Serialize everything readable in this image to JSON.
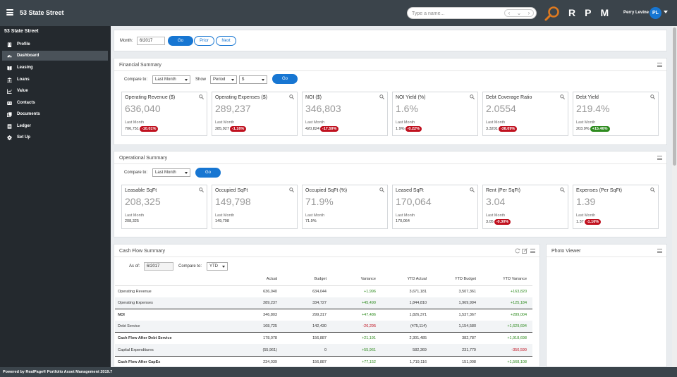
{
  "header": {
    "property_name": "53 State Street",
    "search_placeholder": "Type a name...",
    "brand": "RPM",
    "user_name": "Perry Levine",
    "user_initials": "PL"
  },
  "sidebar": {
    "title": "53 State Street",
    "items": [
      {
        "label": "Profile",
        "icon": "building-icon",
        "active": false
      },
      {
        "label": "Dashboard",
        "icon": "dashboard-icon",
        "active": true
      },
      {
        "label": "Leasing",
        "icon": "book-icon",
        "active": false
      },
      {
        "label": "Loans",
        "icon": "bank-icon",
        "active": false
      },
      {
        "label": "Value",
        "icon": "line-chart-icon",
        "active": false
      },
      {
        "label": "Contacts",
        "icon": "contact-card-icon",
        "active": false
      },
      {
        "label": "Documents",
        "icon": "documents-icon",
        "active": false
      },
      {
        "label": "Ledger",
        "icon": "ledger-icon",
        "active": false
      },
      {
        "label": "Set Up",
        "icon": "gear-icon",
        "active": false
      }
    ]
  },
  "month_bar": {
    "label": "Month:",
    "value": "6/2017",
    "go": "Go",
    "prior": "Prior",
    "next": "Next"
  },
  "financial": {
    "title": "Financial Summary",
    "compare_label": "Compare to:",
    "compare_value": "Last Month",
    "show_label": "Show",
    "show_value": "Period",
    "currency_value": "$",
    "go": "Go",
    "cards": [
      {
        "title": "Operating Revenue ($)",
        "value": "636,040",
        "lm_label": "Last Month",
        "prev": "706,751",
        "change": "-10.01%",
        "dir": "neg"
      },
      {
        "title": "Operating Expenses ($)",
        "value": "289,237",
        "lm_label": "Last Month",
        "prev": "285,927",
        "change": "-1.16%",
        "dir": "neg"
      },
      {
        "title": "NOI ($)",
        "value": "346,803",
        "lm_label": "Last Month",
        "prev": "420,824",
        "change": "-17.59%",
        "dir": "neg"
      },
      {
        "title": "NOI Yield (%)",
        "value": "1.6%",
        "lm_label": "Last Month",
        "prev": "1.9%",
        "change": "-0.22%",
        "dir": "neg"
      },
      {
        "title": "Debt Coverage Ratio",
        "value": "2.0554",
        "lm_label": "Last Month",
        "prev": "3.3201",
        "change": "-38.09%",
        "dir": "neg"
      },
      {
        "title": "Debt Yield",
        "value": "219.4%",
        "lm_label": "Last Month",
        "prev": "203.9%",
        "change": "+15.46%",
        "dir": "pos"
      }
    ]
  },
  "operational": {
    "title": "Operational Summary",
    "compare_label": "Compare to:",
    "compare_value": "Last Month",
    "go": "Go",
    "cards": [
      {
        "title": "Leasable SqFt",
        "value": "208,325",
        "lm_label": "Last Month",
        "prev": "208,325",
        "change": "",
        "dir": ""
      },
      {
        "title": "Occupied SqFt",
        "value": "149,798",
        "lm_label": "Last Month",
        "prev": "149,798",
        "change": "",
        "dir": ""
      },
      {
        "title": "Occupied SqFt (%)",
        "value": "71.9%",
        "lm_label": "Last Month",
        "prev": "71.9%",
        "change": "",
        "dir": ""
      },
      {
        "title": "Leased SqFt",
        "value": "170,064",
        "lm_label": "Last Month",
        "prev": "170,064",
        "change": "",
        "dir": ""
      },
      {
        "title": "Rent (Per SqFt)",
        "value": "3.04",
        "lm_label": "Last Month",
        "prev": "3.05",
        "change": "-0.30%",
        "dir": "neg"
      },
      {
        "title": "Expenses (Per SqFt)",
        "value": "1.39",
        "lm_label": "Last Month",
        "prev": "1.37",
        "change": "-1.16%",
        "dir": "neg"
      }
    ]
  },
  "cashflow": {
    "title": "Cash Flow Summary",
    "as_of_label": "As of:",
    "as_of_value": "6/2017",
    "compare_label": "Compare to:",
    "compare_value": "YTD",
    "columns": [
      "",
      "Actual",
      "Budget",
      "Variance",
      "YTD Actual",
      "YTD Budget",
      "YTD Variance"
    ],
    "rows": [
      {
        "label": "Operating Revenue",
        "actual": "636,040",
        "budget": "634,044",
        "variance": "+1,996",
        "var_dir": "pos",
        "ytd_actual": "3,671,181",
        "ytd_budget": "3,507,361",
        "ytd_var": "+163,820",
        "ytd_dir": "pos",
        "bold": false,
        "topline": false
      },
      {
        "label": "Operating Expenses",
        "actual": "289,237",
        "budget": "334,727",
        "variance": "+45,490",
        "var_dir": "pos",
        "ytd_actual": "1,844,810",
        "ytd_budget": "1,969,994",
        "ytd_var": "+125,184",
        "ytd_dir": "pos",
        "bold": false,
        "topline": false
      },
      {
        "label": "NOI",
        "actual": "346,803",
        "budget": "299,317",
        "variance": "+47,486",
        "var_dir": "pos",
        "ytd_actual": "1,826,371",
        "ytd_budget": "1,537,367",
        "ytd_var": "+289,004",
        "ytd_dir": "pos",
        "bold": true,
        "topline": true
      },
      {
        "label": "Debt Service",
        "actual": "168,725",
        "budget": "142,430",
        "variance": "-26,295",
        "var_dir": "neg",
        "ytd_actual": "(475,114)",
        "ytd_budget": "1,154,580",
        "ytd_var": "+1,629,694",
        "ytd_dir": "pos",
        "bold": false,
        "topline": false
      },
      {
        "label": "Cash Flow After Debt Service",
        "actual": "178,078",
        "budget": "156,887",
        "variance": "+21,191",
        "var_dir": "pos",
        "ytd_actual": "2,301,485",
        "ytd_budget": "382,787",
        "ytd_var": "+1,918,698",
        "ytd_dir": "pos",
        "bold": true,
        "topline": true
      },
      {
        "label": "Capital Expenditures",
        "actual": "(55,961)",
        "budget": "0",
        "variance": "+55,961",
        "var_dir": "pos",
        "ytd_actual": "582,369",
        "ytd_budget": "231,779",
        "ytd_var": "-350,590",
        "ytd_dir": "neg",
        "bold": false,
        "topline": false
      },
      {
        "label": "Cash Flow After CapEx",
        "actual": "234,039",
        "budget": "156,887",
        "variance": "+77,152",
        "var_dir": "pos",
        "ytd_actual": "1,719,116",
        "ytd_budget": "151,008",
        "ytd_var": "+1,568,108",
        "ytd_dir": "pos",
        "bold": true,
        "topline": true
      }
    ]
  },
  "photo_viewer": {
    "title": "Photo Viewer"
  },
  "footer": {
    "text": "Powered by RealPage® Portfolio Asset Management 2019.7"
  },
  "colors": {
    "topbar": "#3b444b",
    "sidebar": "#24292e",
    "accent": "#1776d2",
    "negative": "#c0111f",
    "positive": "#2e8b1f",
    "search_button": "#e07a1f"
  }
}
